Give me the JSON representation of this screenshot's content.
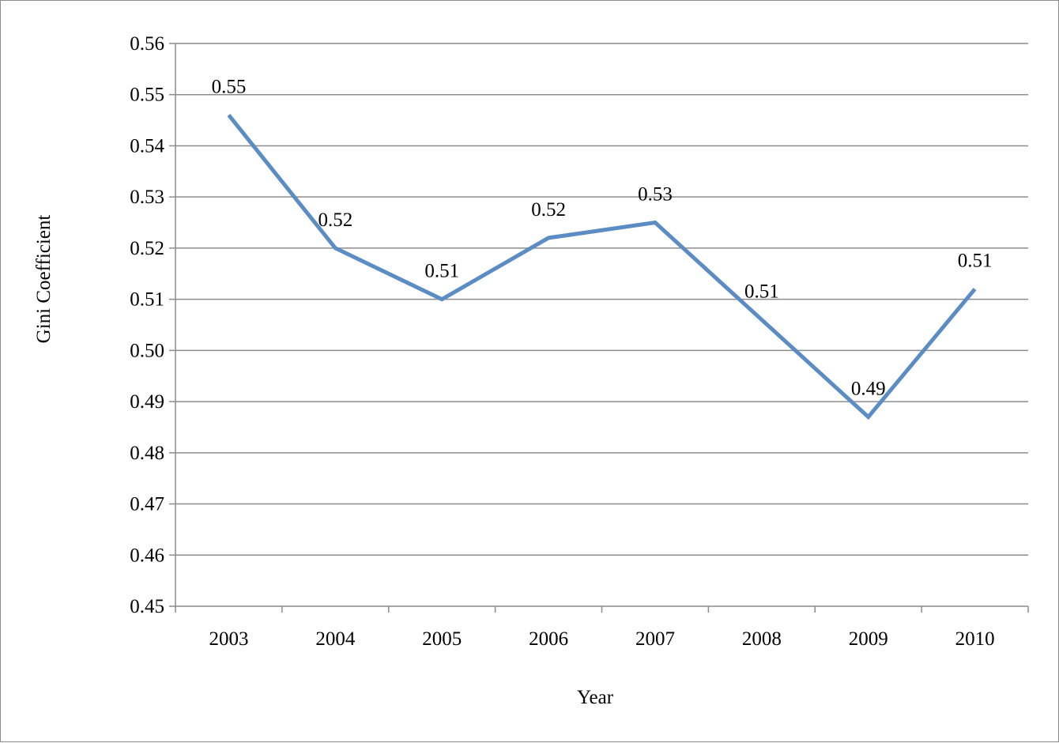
{
  "chart_data": {
    "type": "line",
    "title": "",
    "xlabel": "Year",
    "ylabel": "Gini Coefficient",
    "categories": [
      "2003",
      "2004",
      "2005",
      "2006",
      "2007",
      "2008",
      "2009",
      "2010"
    ],
    "series": [
      {
        "values": [
          0.546,
          0.52,
          0.51,
          0.522,
          0.525,
          0.506,
          0.487,
          0.512
        ],
        "data_labels": [
          "0.55",
          "0.52",
          "0.51",
          "0.52",
          "0.53",
          "0.51",
          "0.49",
          "0.51"
        ],
        "color": "#5b8dc4"
      }
    ],
    "ylim": [
      0.45,
      0.56
    ],
    "ytick_values": [
      0.45,
      0.46,
      0.47,
      0.48,
      0.49,
      0.5,
      0.51,
      0.52,
      0.53,
      0.54,
      0.55,
      0.56
    ],
    "ytick_labels": [
      "0.45",
      "0.46",
      "0.47",
      "0.48",
      "0.49",
      "0.50",
      "0.51",
      "0.52",
      "0.53",
      "0.54",
      "0.55",
      "0.56"
    ],
    "grid": "horizontal",
    "legend": "none"
  }
}
